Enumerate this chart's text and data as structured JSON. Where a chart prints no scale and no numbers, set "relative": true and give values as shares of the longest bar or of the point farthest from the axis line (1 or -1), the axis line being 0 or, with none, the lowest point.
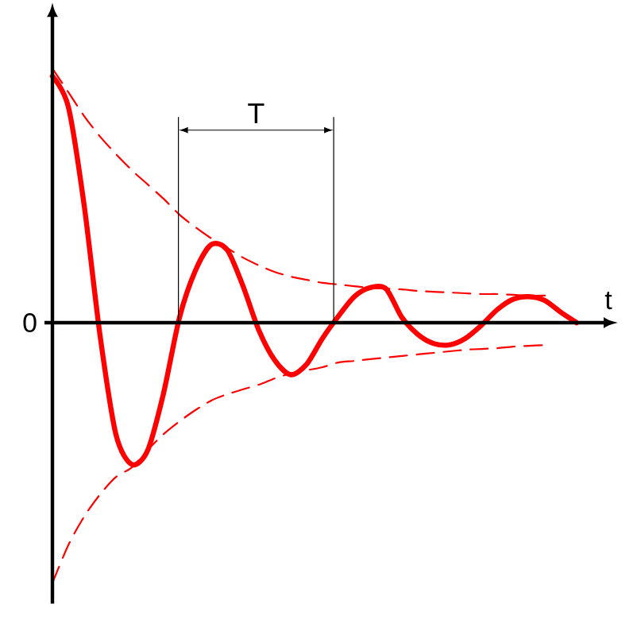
{
  "chart_data": {
    "type": "line",
    "relative": true,
    "xlabel": "t",
    "marker": "none",
    "categories": [
      null,
      null,
      null,
      null,
      null,
      null,
      null,
      null,
      null,
      null,
      null,
      null,
      null,
      null,
      null,
      null,
      null,
      null,
      null,
      null,
      null,
      null,
      null,
      null,
      null,
      null,
      null,
      null,
      null,
      null,
      null,
      null,
      null,
      null
    ],
    "series": [
      {
        "color": "#ff0000",
        "line_style": "solid",
        "values": [
          0.947,
          0.83,
          0.45,
          -0.05,
          -0.43,
          -0.545,
          -0.49,
          -0.27,
          0.02,
          0.2,
          0.3,
          0.28,
          0.14,
          -0.03,
          -0.145,
          -0.2,
          -0.16,
          -0.06,
          0.025,
          0.1,
          0.135,
          0.13,
          0.02,
          -0.045,
          -0.08,
          -0.085,
          -0.06,
          -0.01,
          0.05,
          0.09,
          0.1,
          0.085,
          0.04,
          0
        ]
      },
      {
        "color": "#ff0000",
        "line_style": "dashed",
        "values": [
          0.977,
          0.886,
          0.794,
          0.715,
          0.648,
          0.586,
          0.531,
          0.476,
          0.415,
          0.367,
          0.324,
          0.287,
          0.25,
          0.22,
          0.195,
          0.177,
          0.165,
          0.153,
          0.147,
          0.14,
          0.134,
          0.131,
          0.128,
          0.122,
          0.119,
          0.116,
          0.113,
          0.11,
          0.11,
          0.107,
          0.104,
          0.104,
          null,
          null
        ]
      },
      {
        "color": "#ff0000",
        "line_style": "dashed",
        "values": [
          -1,
          -0.855,
          -0.745,
          -0.66,
          -0.593,
          -0.556,
          -0.489,
          -0.428,
          -0.379,
          -0.336,
          -0.299,
          -0.275,
          -0.256,
          -0.238,
          -0.214,
          -0.195,
          -0.183,
          -0.171,
          -0.153,
          -0.147,
          -0.14,
          -0.134,
          -0.128,
          -0.122,
          -0.116,
          -0.11,
          -0.104,
          -0.101,
          -0.098,
          -0.092,
          -0.089,
          -0.086,
          null,
          null
        ]
      }
    ],
    "annotations": [
      "0",
      "T"
    ]
  }
}
